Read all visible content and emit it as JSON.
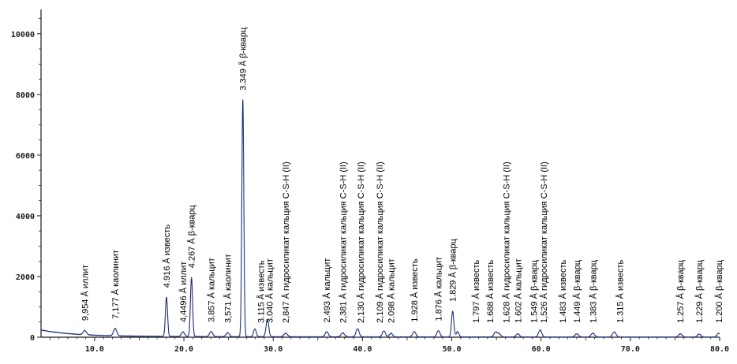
{
  "chart_data": {
    "type": "line",
    "title": "",
    "xlabel": "",
    "ylabel": "",
    "xlim": [
      4,
      80
    ],
    "ylim": [
      0,
      10800
    ],
    "xticks": [
      10,
      20,
      30,
      40,
      50,
      60,
      70,
      80
    ],
    "xtick_labels": [
      "10.0",
      "20.0",
      "30.0",
      "40.0",
      "50.0",
      "60.0",
      "70.0",
      "80.0"
    ],
    "yticks": [
      0,
      2000,
      4000,
      6000,
      8000,
      10000
    ],
    "ytick_labels": [
      "0",
      "2000",
      "4000",
      "6000",
      "8000",
      "10000"
    ],
    "grid": false,
    "colors": {
      "line": "#1f2f7a",
      "axis": "#1a1a1a"
    },
    "background": 200,
    "peaks": [
      {
        "x": 8.9,
        "y": 140,
        "w": 0.18
      },
      {
        "x": 12.3,
        "y": 240,
        "w": 0.18
      },
      {
        "x": 18.05,
        "y": 1300,
        "w": 0.12
      },
      {
        "x": 19.9,
        "y": 150,
        "w": 0.18
      },
      {
        "x": 20.85,
        "y": 1950,
        "w": 0.12
      },
      {
        "x": 23.05,
        "y": 170,
        "w": 0.18
      },
      {
        "x": 24.9,
        "y": 130,
        "w": 0.18
      },
      {
        "x": 26.6,
        "y": 7800,
        "w": 0.11
      },
      {
        "x": 27.95,
        "y": 260,
        "w": 0.15
      },
      {
        "x": 29.35,
        "y": 580,
        "w": 0.15
      },
      {
        "x": 31.4,
        "y": 120,
        "w": 0.2
      },
      {
        "x": 36.0,
        "y": 170,
        "w": 0.18
      },
      {
        "x": 37.8,
        "y": 130,
        "w": 0.2
      },
      {
        "x": 39.45,
        "y": 270,
        "w": 0.18
      },
      {
        "x": 42.4,
        "y": 200,
        "w": 0.18
      },
      {
        "x": 43.2,
        "y": 120,
        "w": 0.18
      },
      {
        "x": 45.8,
        "y": 180,
        "w": 0.18
      },
      {
        "x": 48.5,
        "y": 210,
        "w": 0.18
      },
      {
        "x": 50.1,
        "y": 850,
        "w": 0.13
      },
      {
        "x": 50.65,
        "y": 180,
        "w": 0.15
      },
      {
        "x": 54.9,
        "y": 160,
        "w": 0.18
      },
      {
        "x": 55.3,
        "y": 110,
        "w": 0.18
      },
      {
        "x": 57.4,
        "y": 110,
        "w": 0.18
      },
      {
        "x": 59.9,
        "y": 230,
        "w": 0.18
      },
      {
        "x": 64.0,
        "y": 110,
        "w": 0.2
      },
      {
        "x": 65.8,
        "y": 130,
        "w": 0.2
      },
      {
        "x": 68.2,
        "y": 170,
        "w": 0.2
      },
      {
        "x": 75.6,
        "y": 110,
        "w": 0.2
      },
      {
        "x": 77.7,
        "y": 100,
        "w": 0.2
      },
      {
        "x": 79.9,
        "y": 130,
        "w": 0.2
      }
    ],
    "annotations": [
      {
        "text": "9,954 Å иллит",
        "x": 8.9
      },
      {
        "text": "7,177 Å каолинит",
        "x": 12.3
      },
      {
        "text": "4.916 Å известь",
        "x": 18.05
      },
      {
        "text": "4,4496 Å иллит",
        "x": 19.9
      },
      {
        "text": "4.267 Å β-кварц",
        "x": 20.85
      },
      {
        "text": "3.857 Å кальцит",
        "x": 23.05
      },
      {
        "text": "3,571 Å каолинит",
        "x": 24.9
      },
      {
        "text": "3.349 Å β-кварц",
        "x": 26.6
      },
      {
        "text": "3.115 Å известь",
        "x": 28.6
      },
      {
        "text": "3.040 Å кальцит",
        "x": 29.6
      },
      {
        "text": "2,847 Å гидросиликат кальция C-S-H (II)",
        "x": 31.4
      },
      {
        "text": "2.493 Å кальцит",
        "x": 36.0
      },
      {
        "text": "2,381 Å гидросиликат кальция C-S-H (II)",
        "x": 37.8
      },
      {
        "text": "2,130 Å гидросиликат кальция C-S-H (II)",
        "x": 39.8
      },
      {
        "text": "2,109 Å гидросиликат кальция C-S-H (II)",
        "x": 41.9
      },
      {
        "text": "2.098 Å кальцит",
        "x": 43.2
      },
      {
        "text": "1.928 Å известь",
        "x": 45.8
      },
      {
        "text": "1.876 Å кальцит",
        "x": 48.5
      },
      {
        "text": "1.829 Å β-кварц",
        "x": 50.1
      },
      {
        "text": "1.797 Å известь",
        "x": 52.7
      },
      {
        "text": "1.688 Å известь",
        "x": 54.3
      },
      {
        "text": "1,628 Å гидросиликат кальция C-S-H (II)",
        "x": 56.1
      },
      {
        "text": "1.602 Å кальцит",
        "x": 57.4
      },
      {
        "text": "1.549 Å β-кварц",
        "x": 59.2
      },
      {
        "text": "1,526 Å гидросиликат кальция C-S-H (II)",
        "x": 60.3
      },
      {
        "text": "1.483 Å известь",
        "x": 62.4
      },
      {
        "text": "1.449 Å β-кварц",
        "x": 64.0
      },
      {
        "text": "1.383 Å β-кварц",
        "x": 65.8
      },
      {
        "text": "1.315 Å известь",
        "x": 68.8
      },
      {
        "text": "1.257 Å β-кварц",
        "x": 75.6
      },
      {
        "text": "1.229 Å β-кварц",
        "x": 77.7
      },
      {
        "text": "1.200 Å β-кварц",
        "x": 79.9
      }
    ]
  }
}
